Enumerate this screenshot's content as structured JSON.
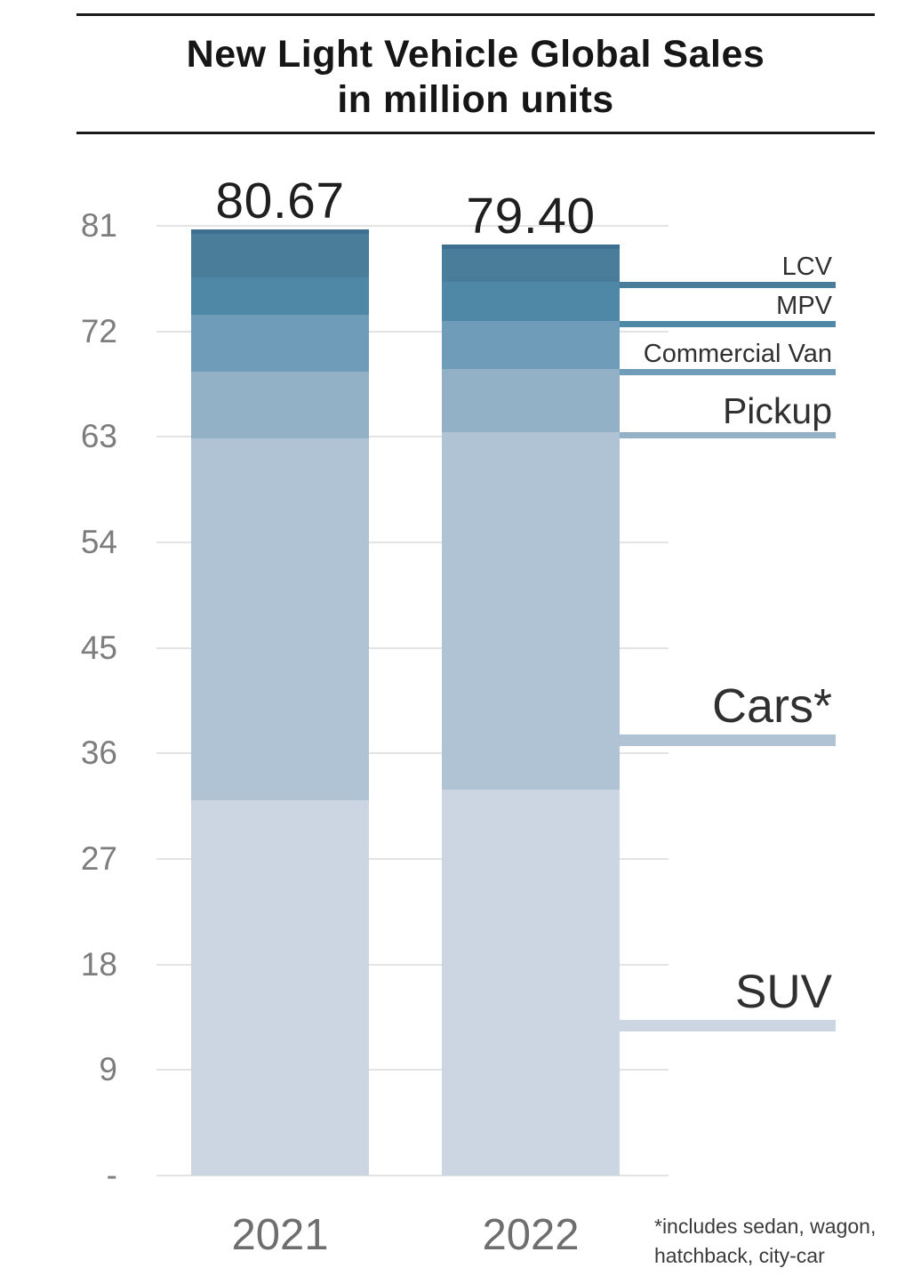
{
  "title": {
    "line1": "New Light Vehicle Global Sales",
    "line2": "in million units"
  },
  "chart_data": {
    "type": "bar",
    "stacked": true,
    "title": "New Light Vehicle Global Sales in million units",
    "unit": "million units",
    "categories": [
      "2021",
      "2022"
    ],
    "totals": [
      80.67,
      79.4
    ],
    "total_labels": [
      "80.67",
      "79.40"
    ],
    "series_bottom_to_top": [
      {
        "name": "SUV",
        "values": [
          32.0,
          32.9
        ],
        "color": "#cbd6e2"
      },
      {
        "name": "Cars*",
        "values": [
          30.9,
          30.5
        ],
        "color": "#b0c3d4"
      },
      {
        "name": "Pickup",
        "values": [
          5.7,
          5.4
        ],
        "color": "#92b0c6"
      },
      {
        "name": "Commercial Van",
        "values": [
          4.8,
          4.1
        ],
        "color": "#6f9cb8"
      },
      {
        "name": "MPV",
        "values": [
          3.2,
          3.3
        ],
        "color": "#4f88a7"
      },
      {
        "name": "LCV",
        "values": [
          4.1,
          3.2
        ],
        "color": "#4a7d99"
      }
    ],
    "side_labels": [
      "LCV",
      "MPV",
      "Commercial Van",
      "Pickup",
      "Cars*",
      "SUV"
    ],
    "ylim": [
      0,
      81
    ],
    "yticks": [
      {
        "value": 81,
        "label": "81"
      },
      {
        "value": 72,
        "label": "72"
      },
      {
        "value": 63,
        "label": "63"
      },
      {
        "value": 54,
        "label": "54"
      },
      {
        "value": 45,
        "label": "45"
      },
      {
        "value": 36,
        "label": "36"
      },
      {
        "value": 27,
        "label": "27"
      },
      {
        "value": 18,
        "label": "18"
      },
      {
        "value": 9,
        "label": "9"
      },
      {
        "value": 0,
        "label": "-"
      }
    ],
    "grid": true,
    "legend_position": "right",
    "bar_cap_color": "#3d7090"
  },
  "footnote": {
    "line1": "*includes sedan, wagon,",
    "line2": "hatchback, city-car"
  },
  "colors": {
    "grid": "#e3e3e3",
    "axis_text": "#7d7d7d",
    "rule": "#1a1a1a",
    "title_text": "#161616",
    "total_text": "#1f1f1f",
    "side_label_text": "#303030"
  }
}
